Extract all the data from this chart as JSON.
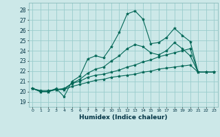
{
  "xlabel": "Humidex (Indice chaleur)",
  "bg_color": "#cce8e8",
  "grid_color": "#99cccc",
  "line_color": "#006655",
  "xlim": [
    -0.5,
    23.5
  ],
  "ylim": [
    18.5,
    28.7
  ],
  "yticks": [
    19,
    20,
    21,
    22,
    23,
    24,
    25,
    26,
    27,
    28
  ],
  "xticks": [
    0,
    1,
    2,
    3,
    4,
    5,
    6,
    7,
    8,
    9,
    10,
    11,
    12,
    13,
    14,
    15,
    16,
    17,
    18,
    19,
    20,
    21,
    22,
    23
  ],
  "xtick_labels": [
    "0",
    "1",
    "2",
    "3",
    "4",
    "5",
    "6",
    "7",
    "8",
    "9",
    "10",
    "11",
    "12",
    "13",
    "14",
    "15",
    "16",
    "17",
    "18",
    "19",
    "20",
    "21",
    "22",
    "23"
  ],
  "series": [
    [
      20.3,
      20.0,
      20.0,
      20.3,
      19.5,
      21.0,
      21.5,
      23.2,
      23.5,
      23.3,
      24.4,
      25.8,
      27.6,
      27.9,
      27.1,
      24.7,
      24.8,
      25.3,
      26.2,
      25.5,
      24.9,
      21.9,
      21.9,
      21.9
    ],
    [
      20.3,
      20.0,
      20.0,
      20.2,
      20.3,
      20.8,
      21.2,
      21.8,
      22.2,
      22.4,
      23.0,
      23.5,
      24.2,
      24.6,
      24.4,
      23.8,
      23.6,
      24.0,
      24.8,
      24.2,
      23.5,
      21.9,
      21.9,
      21.9
    ],
    [
      20.3,
      20.0,
      20.0,
      20.2,
      20.2,
      20.8,
      21.0,
      21.4,
      21.6,
      21.7,
      21.9,
      22.1,
      22.4,
      22.6,
      22.9,
      23.1,
      23.4,
      23.6,
      23.8,
      24.0,
      24.2,
      21.9,
      21.9,
      21.9
    ],
    [
      20.3,
      20.1,
      20.1,
      20.2,
      20.2,
      20.5,
      20.7,
      20.9,
      21.1,
      21.2,
      21.4,
      21.5,
      21.6,
      21.7,
      21.9,
      22.0,
      22.2,
      22.3,
      22.4,
      22.5,
      22.6,
      21.9,
      21.9,
      21.9
    ]
  ]
}
